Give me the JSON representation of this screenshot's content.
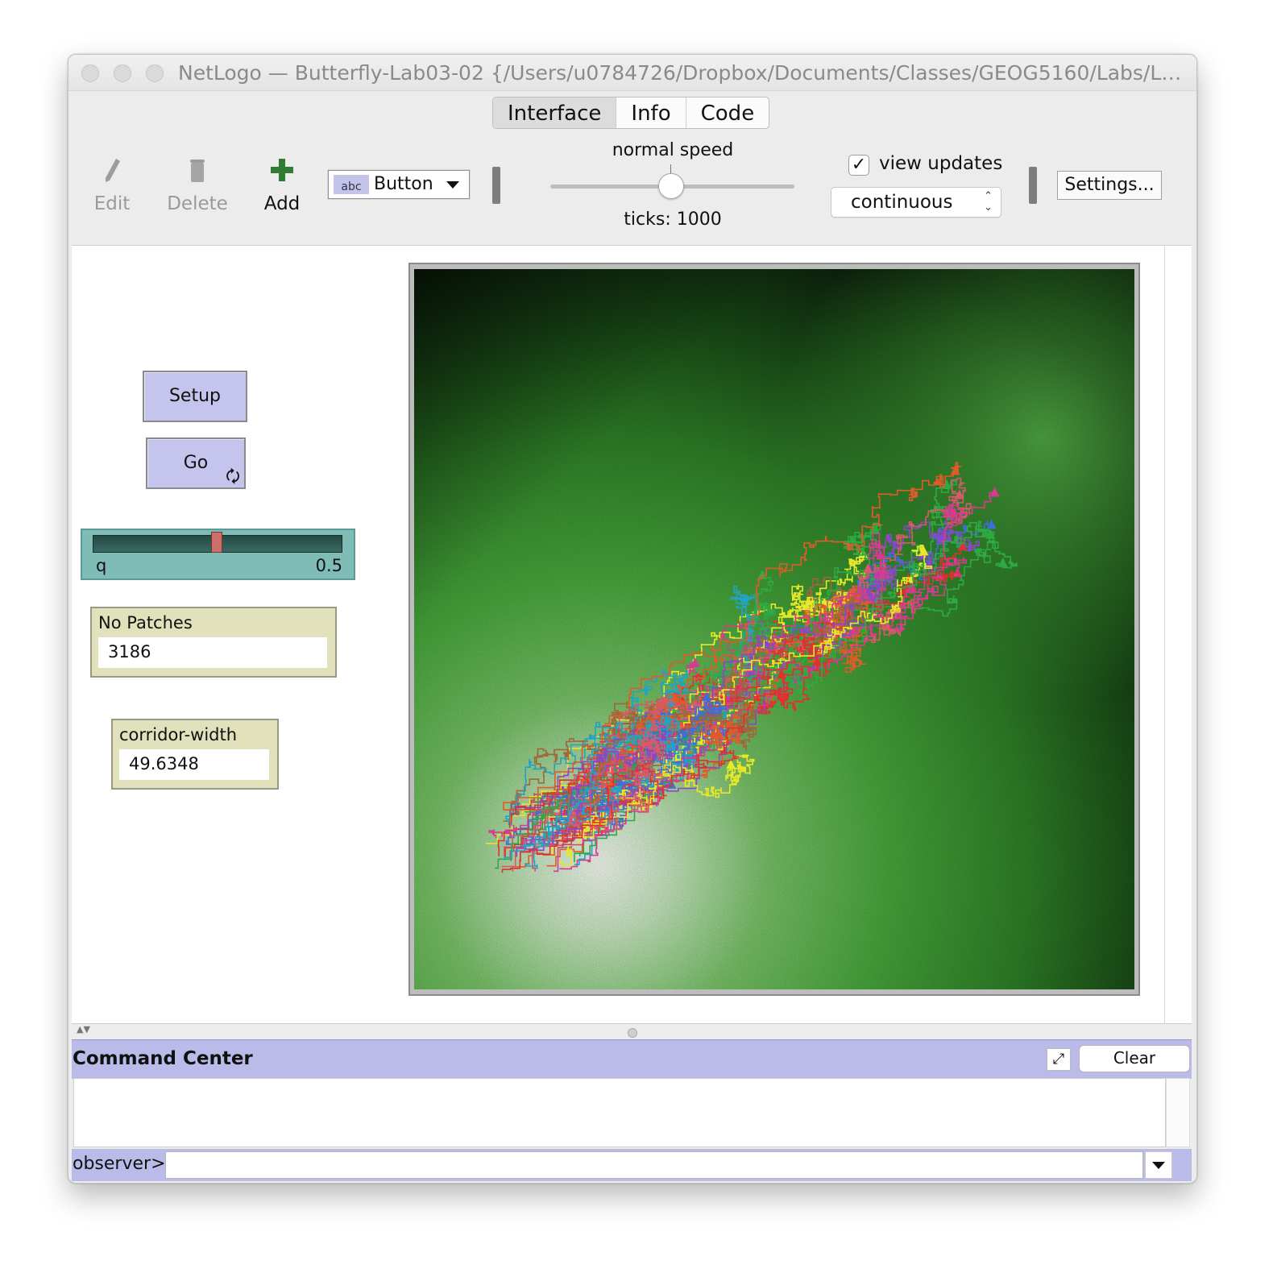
{
  "window": {
    "title": "NetLogo — Butterfly-Lab03-02 {/Users/u0784726/Dropbox/Documents/Classes/GEOG5160/Labs/La..."
  },
  "tabs": [
    {
      "label": "Interface",
      "active": true
    },
    {
      "label": "Info",
      "active": false
    },
    {
      "label": "Code",
      "active": false
    }
  ],
  "toolbar": {
    "edit_label": "Edit",
    "delete_label": "Delete",
    "add_label": "Add",
    "widget_type": {
      "icon_text": "abc",
      "label": "Button"
    },
    "speed_label": "normal speed",
    "speed_value": 0.5,
    "ticks_text": "ticks: 1000",
    "view_updates": {
      "checked": true,
      "check_glyph": "✓",
      "label": "view updates"
    },
    "update_mode": "continuous",
    "settings_label": "Settings..."
  },
  "widgets": {
    "setup_button": "Setup",
    "go_button": "Go",
    "go_forever_icon": "🗘",
    "q_slider": {
      "name": "q",
      "value": "0.5",
      "fraction": 0.5
    },
    "monitors": [
      {
        "label": "No Patches",
        "value": "3186"
      },
      {
        "label": "corridor-width",
        "value": "49.6348"
      }
    ]
  },
  "world_view": {
    "description_colors": {
      "background": "#0b1a0b",
      "hill_green": "#3f9e35",
      "hill_peak": "#f2f8ef"
    },
    "path_colors": [
      "#e8e828",
      "#d63a91",
      "#3d6fd6",
      "#2eaa45",
      "#a0663a",
      "#e25a2a",
      "#8a48c8",
      "#23a3c2",
      "#d65a6a",
      "#e03030"
    ]
  },
  "command_center": {
    "title": "Command Center",
    "clear_label": "Clear",
    "prompt": "observer>",
    "input_value": ""
  }
}
